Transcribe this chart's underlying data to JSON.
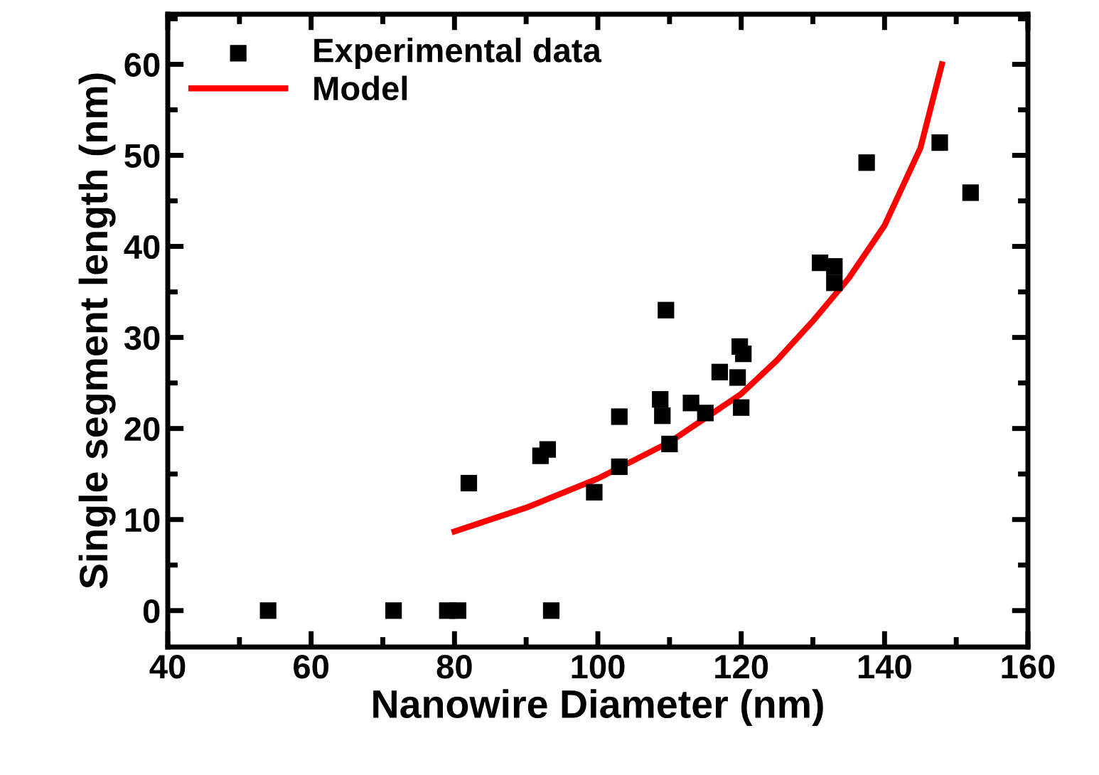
{
  "chart_data": {
    "type": "scatter",
    "xlabel": "Nanowire Diameter (nm)",
    "ylabel": "Single segment length (nm)",
    "xlim": [
      40,
      160
    ],
    "xticks": [
      40,
      60,
      80,
      100,
      120,
      140,
      160
    ],
    "ylim": [
      -4,
      65.5
    ],
    "yticks": [
      0,
      10,
      20,
      30,
      40,
      50,
      60
    ],
    "grid": false,
    "legend": "top left",
    "series": [
      {
        "name": "Experimental data",
        "marker": "square",
        "color": "#000000",
        "x": [
          54,
          71.5,
          79,
          80.5,
          93.5,
          82,
          92,
          93,
          99.5,
          103,
          103,
          108.7,
          109,
          109.5,
          110,
          113,
          115,
          117,
          119.5,
          119.8,
          120.3,
          120,
          131,
          133,
          133,
          137.5,
          147.7,
          152
        ],
        "values": [
          0,
          0,
          0,
          0,
          0,
          14,
          17,
          17.7,
          13,
          21.3,
          15.8,
          23.2,
          21.4,
          33,
          18.3,
          22.8,
          21.7,
          26.2,
          25.6,
          29,
          28.2,
          22.3,
          38.2,
          37.8,
          36,
          49.2,
          51.4,
          45.9
        ]
      },
      {
        "name": "Model",
        "type": "line",
        "marker": "none",
        "line_style": "solid",
        "color": "#ff0000",
        "x": [
          80,
          90,
          100,
          110,
          120,
          125,
          130,
          135,
          140,
          145,
          148
        ],
        "values": [
          8.7,
          11.3,
          14.5,
          18.5,
          23.8,
          27.5,
          31.8,
          36.5,
          42.3,
          50.8,
          60
        ]
      }
    ]
  }
}
